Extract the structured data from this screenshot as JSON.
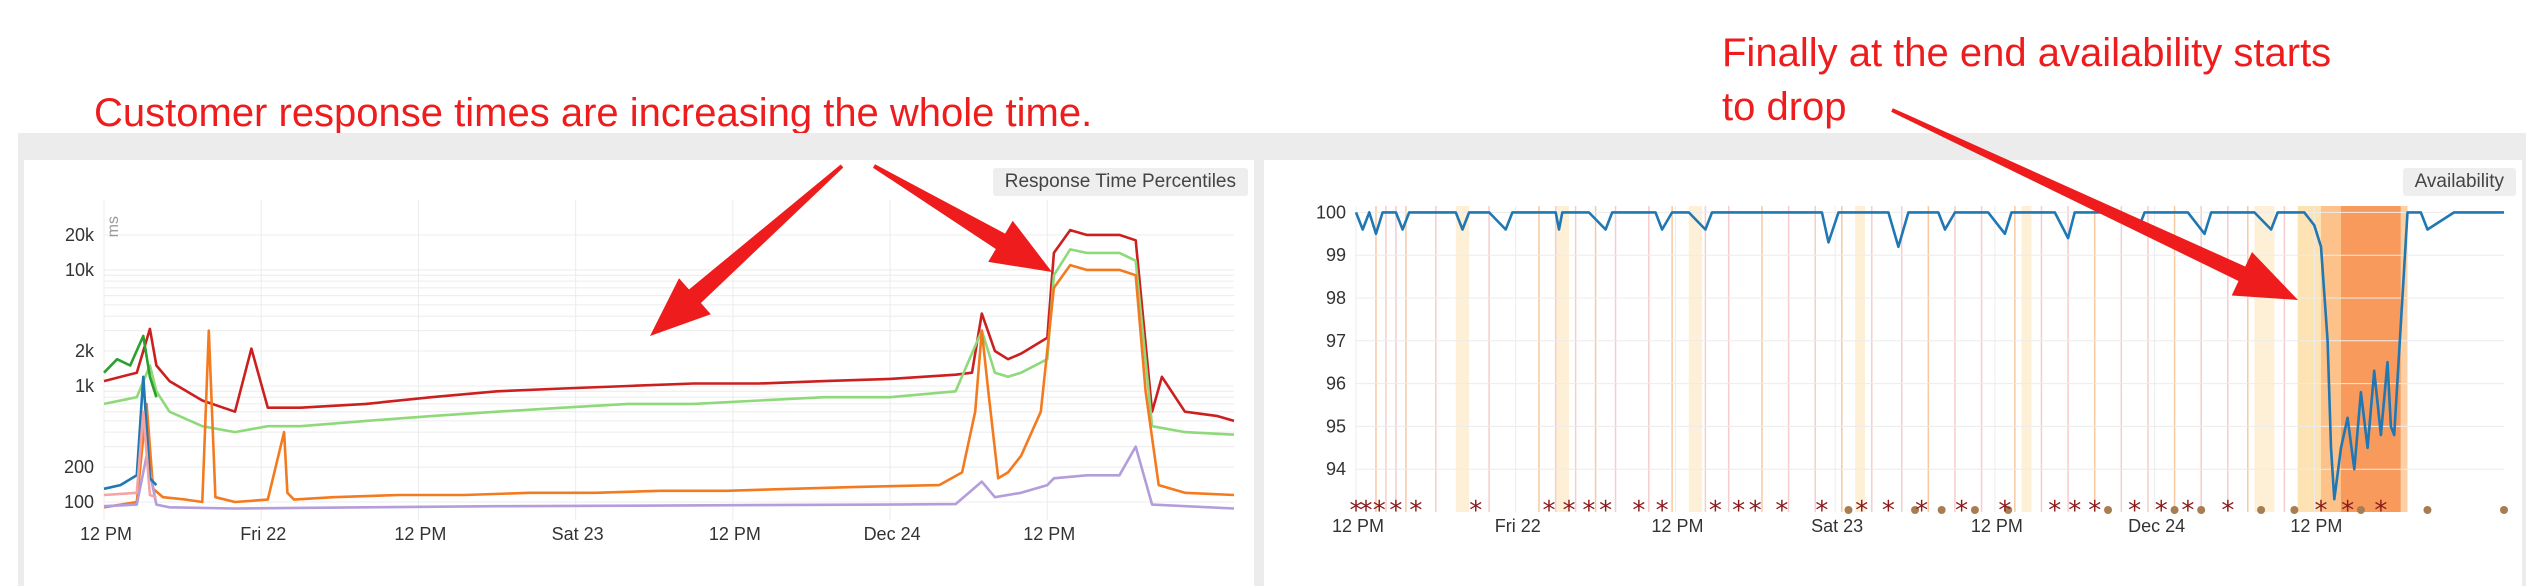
{
  "annotations": {
    "left": "Customer response times are increasing the whole time.",
    "right_line1": "Finally at the end availability starts",
    "right_line2": "to drop"
  },
  "chart_data": [
    {
      "type": "line",
      "title": "Response Time Percentiles",
      "ylabel": "ms",
      "yscale": "log",
      "ylim": [
        70,
        40000
      ],
      "xlim": [
        0,
        345
      ],
      "x_unit": "hours since Thu 12 PM",
      "y_ticks": [
        100,
        200,
        1000,
        2000,
        10000,
        20000
      ],
      "y_tick_labels": [
        "100",
        "200",
        "1k",
        "2k",
        "10k",
        "20k"
      ],
      "x_ticks": [
        0,
        48,
        96,
        144,
        192,
        240,
        288
      ],
      "x_tick_labels": [
        "12 PM",
        "Fri 22",
        "12 PM",
        "Sat 23",
        "12 PM",
        "Dec 24",
        "12 PM"
      ],
      "grid": true,
      "legend": "none",
      "series": [
        {
          "name": "",
          "color": "#cc1f1f",
          "x": [
            0,
            10,
            14,
            16,
            20,
            30,
            40,
            45,
            50,
            60,
            80,
            100,
            120,
            140,
            160,
            180,
            200,
            220,
            240,
            260,
            265,
            268,
            272,
            276,
            280,
            288,
            290,
            295,
            300,
            305,
            310,
            315,
            320,
            323,
            330,
            340,
            345
          ],
          "y": [
            1100,
            1300,
            3100,
            1500,
            1100,
            750,
            600,
            2100,
            650,
            650,
            700,
            800,
            900,
            950,
            1000,
            1050,
            1050,
            1100,
            1150,
            1250,
            1300,
            4200,
            2000,
            1700,
            1900,
            2600,
            14000,
            22000,
            20000,
            20000,
            20000,
            18000,
            600,
            1200,
            600,
            550,
            500
          ]
        },
        {
          "name": "",
          "color": "#8ed97a",
          "x": [
            0,
            10,
            14,
            16,
            20,
            30,
            40,
            50,
            60,
            80,
            100,
            120,
            140,
            160,
            180,
            200,
            220,
            240,
            260,
            268,
            272,
            276,
            280,
            288,
            290,
            295,
            300,
            310,
            315,
            320,
            330,
            345
          ],
          "y": [
            700,
            800,
            1500,
            900,
            600,
            450,
            400,
            450,
            450,
            500,
            550,
            600,
            650,
            700,
            700,
            750,
            800,
            800,
            900,
            3000,
            1300,
            1200,
            1300,
            1700,
            9000,
            15000,
            14000,
            14000,
            12000,
            450,
            400,
            380
          ]
        },
        {
          "name": "",
          "color": "#f47a20",
          "x": [
            0,
            10,
            13,
            15,
            18,
            25,
            30,
            32,
            34,
            40,
            50,
            55,
            56,
            58,
            70,
            90,
            110,
            130,
            150,
            170,
            190,
            210,
            230,
            255,
            262,
            266,
            268,
            270,
            273,
            276,
            280,
            286,
            290,
            295,
            300,
            310,
            315,
            318,
            322,
            330,
            345
          ],
          "y": [
            90,
            100,
            700,
            130,
            110,
            105,
            100,
            3000,
            110,
            100,
            105,
            400,
            120,
            105,
            110,
            115,
            115,
            120,
            120,
            125,
            125,
            130,
            135,
            140,
            180,
            600,
            3000,
            900,
            160,
            180,
            250,
            600,
            7000,
            11000,
            10000,
            10000,
            9000,
            900,
            140,
            120,
            115
          ]
        },
        {
          "name": "",
          "color": "#b39ddb",
          "x": [
            0,
            10,
            13,
            16,
            20,
            40,
            80,
            120,
            160,
            200,
            240,
            260,
            268,
            272,
            280,
            288,
            290,
            300,
            310,
            315,
            320,
            345
          ],
          "y": [
            92,
            95,
            250,
            95,
            90,
            88,
            90,
            92,
            93,
            94,
            95,
            96,
            150,
            110,
            120,
            140,
            160,
            170,
            170,
            300,
            95,
            88
          ]
        },
        {
          "name": "",
          "color": "#1f77b4",
          "x": [
            0,
            5,
            10,
            12,
            14,
            16
          ],
          "y": [
            130,
            140,
            170,
            1200,
            160,
            140
          ]
        },
        {
          "name": "",
          "color": "#2ca02c",
          "x": [
            0,
            4,
            8,
            12,
            14,
            16
          ],
          "y": [
            1300,
            1700,
            1500,
            2700,
            1200,
            800
          ]
        },
        {
          "name": "",
          "color": "#f5a3a3",
          "x": [
            0,
            10,
            12,
            14,
            16
          ],
          "y": [
            115,
            120,
            600,
            115,
            110
          ]
        }
      ]
    },
    {
      "type": "line",
      "title": "Availability",
      "ylim": [
        93,
        100.15
      ],
      "xlim": [
        0,
        345
      ],
      "x_unit": "hours since Thu 12 PM",
      "y_ticks": [
        94,
        95,
        96,
        97,
        98,
        99,
        100
      ],
      "y_tick_labels": [
        "94",
        "95",
        "96",
        "97",
        "98",
        "99",
        "100"
      ],
      "x_ticks": [
        0,
        48,
        96,
        144,
        192,
        240,
        288
      ],
      "x_tick_labels": [
        "12 PM",
        "Fri 22",
        "12 PM",
        "Sat 23",
        "12 PM",
        "Dec 24",
        "12 PM"
      ],
      "grid": true,
      "legend": "none",
      "series": [
        {
          "name": "",
          "color": "#1f77b4",
          "x": [
            0,
            2,
            4,
            6,
            8,
            12,
            14,
            16,
            30,
            32,
            34,
            40,
            45,
            47,
            50,
            60,
            61,
            62,
            70,
            75,
            77,
            80,
            90,
            92,
            95,
            100,
            105,
            107,
            110,
            120,
            140,
            142,
            145,
            160,
            163,
            166,
            175,
            177,
            180,
            190,
            195,
            197,
            200,
            210,
            214,
            216,
            220,
            230,
            235,
            237,
            240,
            250,
            255,
            257,
            260,
            270,
            275,
            277,
            285,
            288,
            290,
            292,
            293,
            294,
            296,
            298,
            300,
            302,
            304,
            306,
            308,
            310,
            311,
            312,
            316,
            320,
            322,
            330,
            345
          ],
          "y": [
            100,
            99.6,
            100,
            99.5,
            100,
            100,
            99.6,
            100,
            100,
            99.6,
            100,
            100,
            99.6,
            100,
            100,
            100,
            99.6,
            100,
            100,
            99.6,
            100,
            100,
            100,
            99.6,
            100,
            100,
            99.6,
            100,
            100,
            100,
            100,
            99.3,
            100,
            100,
            99.2,
            100,
            100,
            99.6,
            100,
            100,
            99.5,
            100,
            100,
            100,
            99.4,
            100,
            100,
            100,
            99.6,
            100,
            100,
            100,
            99.5,
            100,
            100,
            100,
            99.6,
            100,
            100,
            99.7,
            99.2,
            97,
            94.5,
            93.3,
            94.5,
            95.2,
            94,
            95.8,
            94.5,
            96.3,
            94.8,
            96.5,
            95,
            94.8,
            100,
            100,
            99.6,
            100,
            100
          ]
        }
      ],
      "markers": {
        "star_color": "#8b1a1a",
        "dot_color": "#a87d52",
        "star_x": [
          0,
          3,
          7,
          12,
          18,
          36,
          58,
          64,
          70,
          75,
          85,
          92,
          108,
          115,
          120,
          128,
          140,
          152,
          160,
          170,
          182,
          195,
          210,
          216,
          222,
          234,
          242,
          250,
          262,
          290,
          298,
          308
        ],
        "dot_x": [
          148,
          168,
          176,
          186,
          196,
          226,
          246,
          254,
          272,
          282,
          302,
          322,
          345
        ]
      }
    }
  ]
}
